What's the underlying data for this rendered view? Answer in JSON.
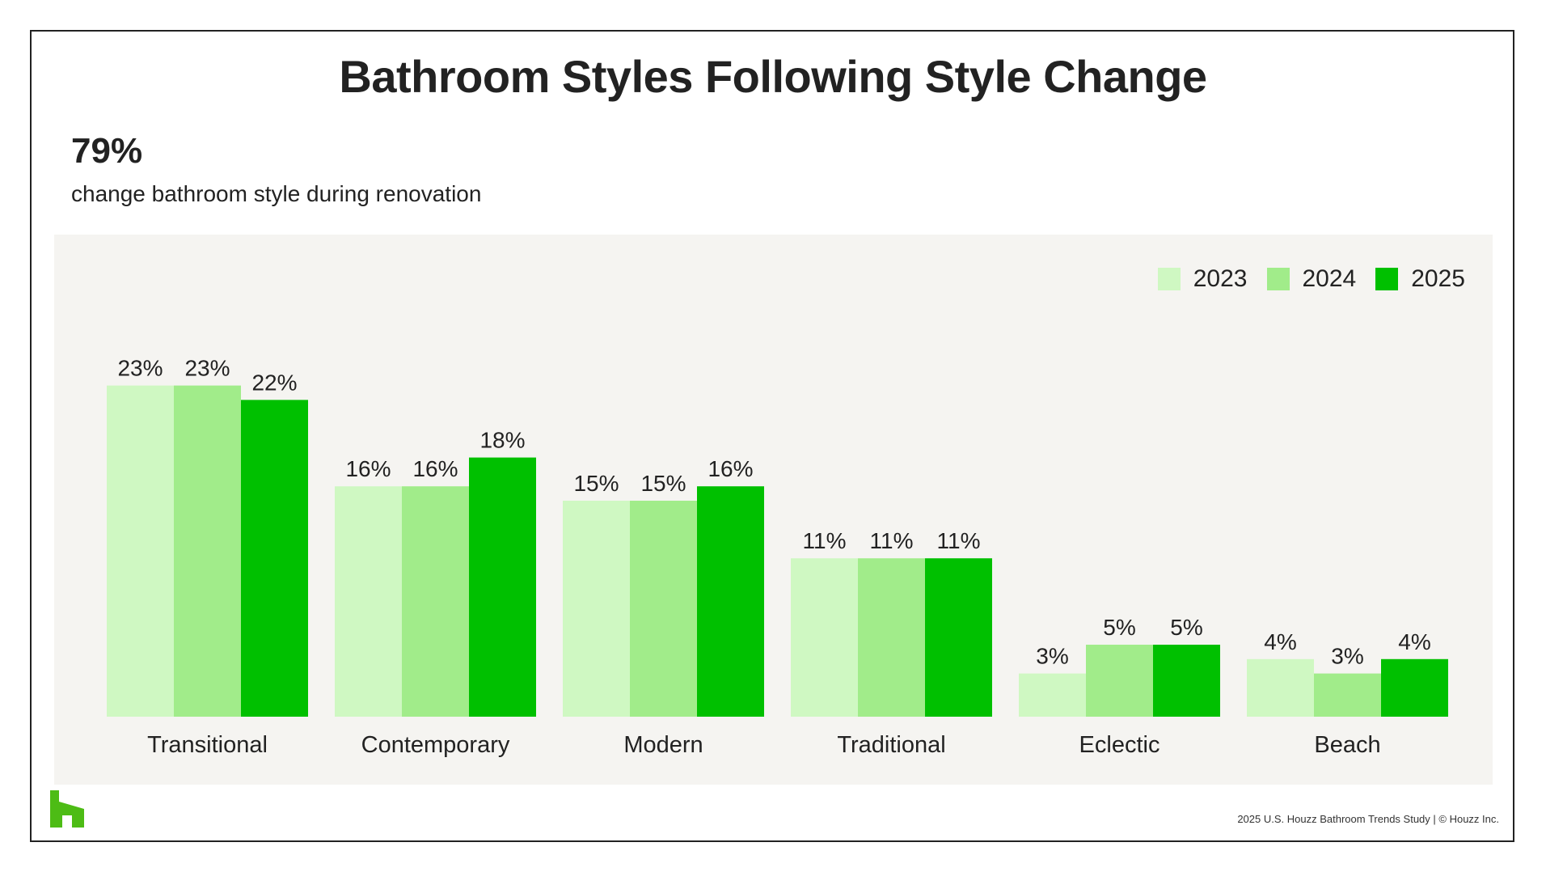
{
  "title": "Bathroom Styles Following Style Change",
  "stat": {
    "value": "79%",
    "caption": "change bathroom style during renovation"
  },
  "footer": "2025 U.S. Houzz Bathroom Trends Study  |  © Houzz Inc.",
  "colors": {
    "panel_bg": "#f5f4f1",
    "series_2023": "#cff8c2",
    "series_2024": "#a1ec8a",
    "series_2025": "#00c000",
    "logo": "#4dbc15"
  },
  "icons": {
    "logo": "houzz-logo-icon"
  },
  "chart_data": {
    "type": "bar",
    "categories": [
      "Transitional",
      "Contemporary",
      "Modern",
      "Traditional",
      "Eclectic",
      "Beach"
    ],
    "series": [
      {
        "name": "2023",
        "values": [
          23,
          16,
          15,
          11,
          3,
          4
        ],
        "labels": [
          "23%",
          "16%",
          "15%",
          "11%",
          "3%",
          "4%"
        ],
        "color": "#cff8c2"
      },
      {
        "name": "2024",
        "values": [
          23,
          16,
          15,
          11,
          5,
          3
        ],
        "labels": [
          "23%",
          "16%",
          "15%",
          "11%",
          "5%",
          "3%"
        ],
        "color": "#a1ec8a"
      },
      {
        "name": "2025",
        "values": [
          22,
          18,
          16,
          11,
          5,
          4
        ],
        "labels": [
          "22%",
          "18%",
          "16%",
          "11%",
          "5%",
          "4%"
        ],
        "color": "#00c000"
      }
    ],
    "unit": "%",
    "ylim": [
      0,
      25
    ],
    "grid": false,
    "legend": "top-right",
    "title": "",
    "xlabel": "",
    "ylabel": ""
  }
}
